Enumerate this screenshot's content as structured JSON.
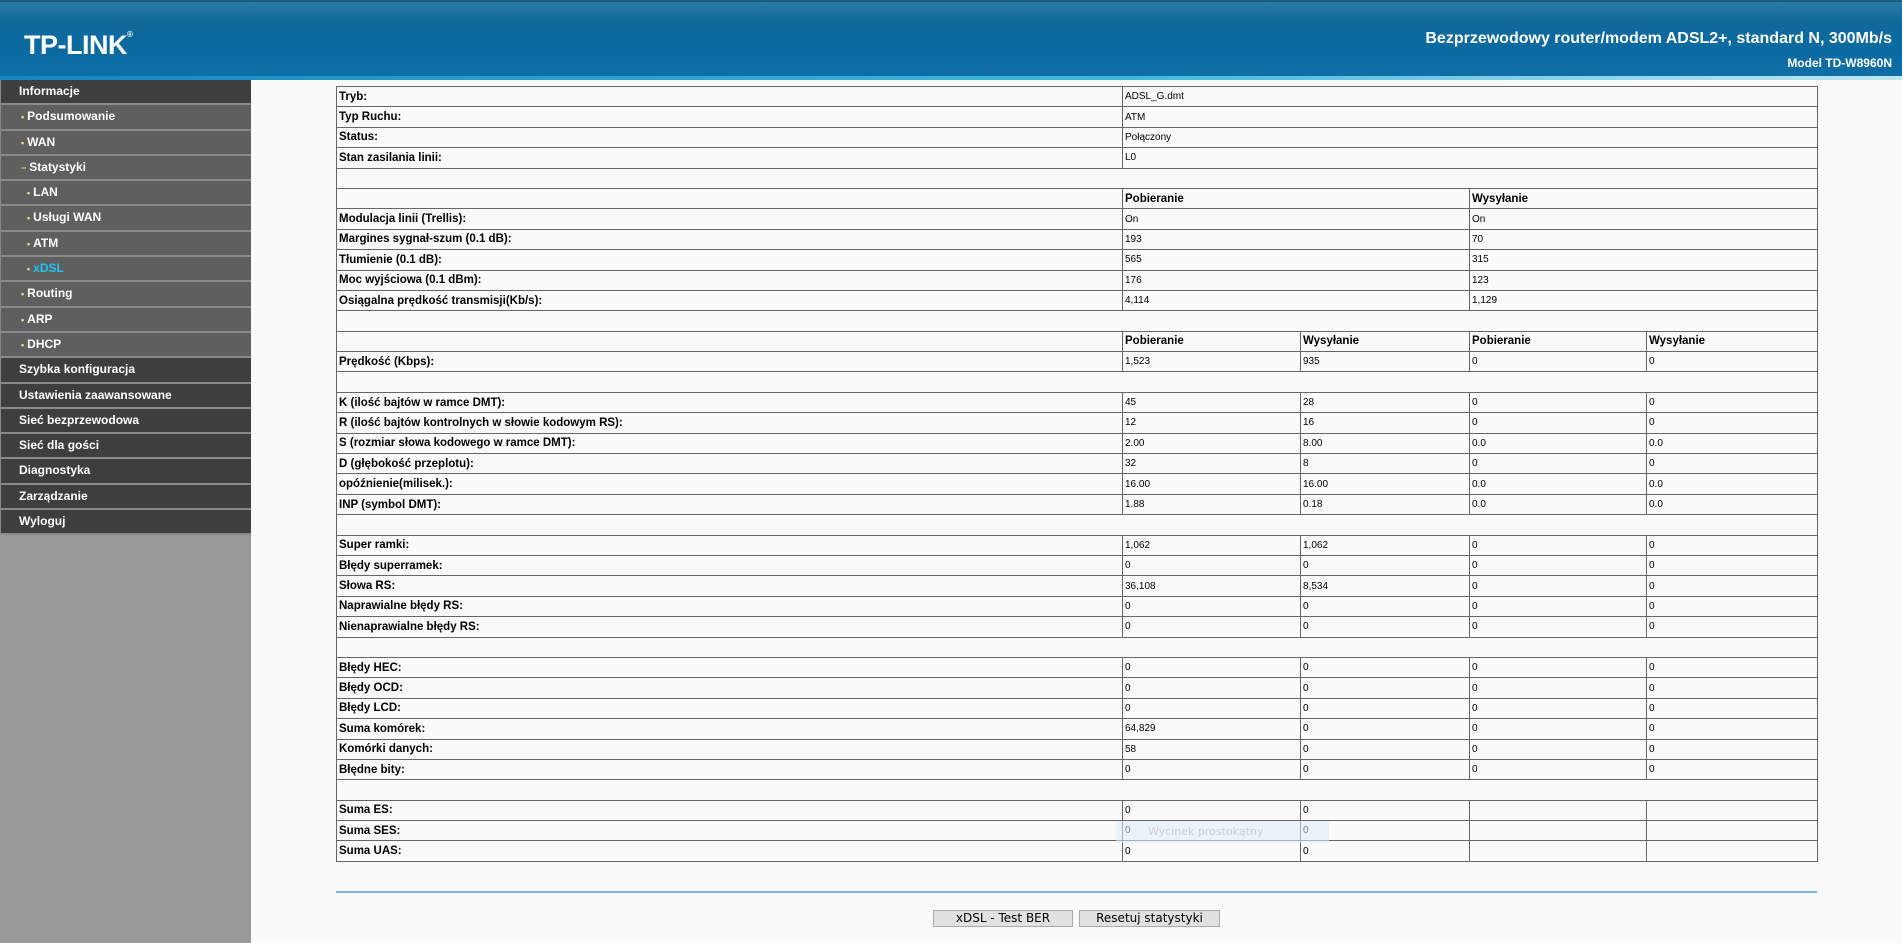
{
  "header": {
    "logo": "TP-LINK",
    "title": "Bezprzewodowy router/modem ADSL2+, standard N, 300Mb/s",
    "model": "Model TD-W8960N"
  },
  "colors": {
    "header": "#0a6aa0",
    "sidebar_dark": "#3e3e3e",
    "sidebar_item": "#5f5f5f",
    "active": "#1ec3f0"
  },
  "sidebar": {
    "items": [
      {
        "label": "Informacje",
        "level": "top",
        "marker": ""
      },
      {
        "label": "Podsumowanie",
        "level": "l1",
        "marker": "•"
      },
      {
        "label": "WAN",
        "level": "l1",
        "marker": "•"
      },
      {
        "label": "Statystyki",
        "level": "l1",
        "marker": "−"
      },
      {
        "label": "LAN",
        "level": "l2",
        "marker": "•"
      },
      {
        "label": "Usługi WAN",
        "level": "l2",
        "marker": "•"
      },
      {
        "label": "ATM",
        "level": "l2",
        "marker": "•"
      },
      {
        "label": "xDSL",
        "level": "l2",
        "marker": "•",
        "active": true
      },
      {
        "label": "Routing",
        "level": "l1",
        "marker": "•"
      },
      {
        "label": "ARP",
        "level": "l1",
        "marker": "•"
      },
      {
        "label": "DHCP",
        "level": "l1",
        "marker": "•"
      },
      {
        "label": "Szybka konfiguracja",
        "level": "top",
        "marker": ""
      },
      {
        "label": "Ustawienia zaawansowane",
        "level": "top",
        "marker": ""
      },
      {
        "label": "Sieć bezprzewodowa",
        "level": "top",
        "marker": ""
      },
      {
        "label": "Sieć dla gości",
        "level": "top",
        "marker": ""
      },
      {
        "label": "Diagnostyka",
        "level": "top",
        "marker": ""
      },
      {
        "label": "Zarządzanie",
        "level": "top",
        "marker": ""
      },
      {
        "label": "Wyloguj",
        "level": "top",
        "marker": ""
      }
    ]
  },
  "table": {
    "rows": [
      {
        "type": "kv",
        "label": "Tryb:",
        "value": "ADSL_G.dmt"
      },
      {
        "type": "kv",
        "label": "Typ Ruchu:",
        "value": "ATM"
      },
      {
        "type": "kv",
        "label": "Status:",
        "value": "Połączony"
      },
      {
        "type": "kv",
        "label": "Stan zasilania linii:",
        "value": "L0"
      },
      {
        "type": "blank"
      },
      {
        "type": "head2",
        "cells": [
          "Pobieranie",
          "Wysyłanie"
        ]
      },
      {
        "type": "two",
        "label": "Modulacja linii (Trellis):",
        "cells": [
          "On",
          "On"
        ]
      },
      {
        "type": "two",
        "label": "Margines sygnał-szum (0.1 dB):",
        "cells": [
          "193",
          "70"
        ]
      },
      {
        "type": "two",
        "label": "Tłumienie (0.1 dB):",
        "cells": [
          "565",
          "315"
        ]
      },
      {
        "type": "two",
        "label": "Moc wyjściowa (0.1 dBm):",
        "cells": [
          "176",
          "123"
        ]
      },
      {
        "type": "two",
        "label": "Osiągalna prędkość transmisji(Kb/s):",
        "cells": [
          "4,114",
          "1,129"
        ]
      },
      {
        "type": "blank"
      },
      {
        "type": "head4",
        "cells": [
          "Pobieranie",
          "Wysyłanie",
          "Pobieranie",
          "Wysyłanie"
        ]
      },
      {
        "type": "four",
        "label": "Prędkość (Kbps):",
        "cells": [
          "1,523",
          "935",
          "0",
          "0"
        ]
      },
      {
        "type": "blank"
      },
      {
        "type": "four",
        "label": "K (ilość bajtów w ramce DMT):",
        "cells": [
          "45",
          "28",
          "0",
          "0"
        ]
      },
      {
        "type": "four",
        "label": "R (ilość bajtów kontrolnych w słowie kodowym RS):",
        "cells": [
          "12",
          "16",
          "0",
          "0"
        ]
      },
      {
        "type": "four",
        "label": "S (rozmiar słowa kodowego w ramce DMT):",
        "cells": [
          "2.00",
          "8.00",
          "0.0",
          "0.0"
        ]
      },
      {
        "type": "four",
        "label": "D (głębokość przeplotu):",
        "cells": [
          "32",
          "8",
          "0",
          "0"
        ]
      },
      {
        "type": "four",
        "label": "opóźnienie(milisek.):",
        "cells": [
          "16.00",
          "16.00",
          "0.0",
          "0.0"
        ]
      },
      {
        "type": "four",
        "label": "INP (symbol DMT):",
        "cells": [
          "1.88",
          "0.18",
          "0.0",
          "0.0"
        ]
      },
      {
        "type": "blank"
      },
      {
        "type": "four",
        "label": "Super ramki:",
        "cells": [
          "1,062",
          "1,062",
          "0",
          "0"
        ]
      },
      {
        "type": "four",
        "label": "Błędy superramek:",
        "cells": [
          "0",
          "0",
          "0",
          "0"
        ]
      },
      {
        "type": "four",
        "label": "Słowa RS:",
        "cells": [
          "36,108",
          "8,534",
          "0",
          "0"
        ]
      },
      {
        "type": "four",
        "label": "Naprawialne błędy RS:",
        "cells": [
          "0",
          "0",
          "0",
          "0"
        ]
      },
      {
        "type": "four",
        "label": "Nienaprawialne błędy RS:",
        "cells": [
          "0",
          "0",
          "0",
          "0"
        ]
      },
      {
        "type": "blank"
      },
      {
        "type": "four",
        "label": "Błędy HEC:",
        "cells": [
          "0",
          "0",
          "0",
          "0"
        ]
      },
      {
        "type": "four",
        "label": "Błędy OCD:",
        "cells": [
          "0",
          "0",
          "0",
          "0"
        ]
      },
      {
        "type": "four",
        "label": "Błędy LCD:",
        "cells": [
          "0",
          "0",
          "0",
          "0"
        ]
      },
      {
        "type": "four",
        "label": "Suma komórek:",
        "cells": [
          "64,829",
          "0",
          "0",
          "0"
        ]
      },
      {
        "type": "four",
        "label": "Komórki danych:",
        "cells": [
          "58",
          "0",
          "0",
          "0"
        ]
      },
      {
        "type": "four",
        "label": "Błędne bity:",
        "cells": [
          "0",
          "0",
          "0",
          "0"
        ]
      },
      {
        "type": "blank"
      },
      {
        "type": "four",
        "label": "Suma ES:",
        "cells": [
          "0",
          "0",
          "",
          ""
        ]
      },
      {
        "type": "four",
        "label": "Suma SES:",
        "cells": [
          "0",
          "0",
          "",
          ""
        ]
      },
      {
        "type": "four",
        "label": "Suma UAS:",
        "cells": [
          "0",
          "0",
          "",
          ""
        ]
      }
    ]
  },
  "buttons": {
    "ber": "xDSL - Test BER",
    "reset": "Resetuj statystyki"
  },
  "tooltip": "Wycinek prostokątny"
}
